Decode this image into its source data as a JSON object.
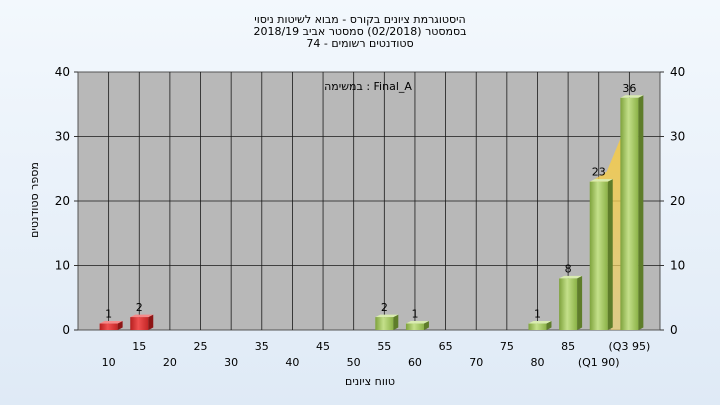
{
  "chart_data": {
    "type": "bar",
    "title_lines": [
      "היסטוגרמת ציונים בקורס - מבוא לשיטות ניסוי",
      "בסמסטר  (02/2018)  סמסטר אביב 2018/19",
      "סטודנטים רשומים - 74"
    ],
    "annotation": "במשימה : Final_A",
    "xlabel": "טווח ציונים",
    "ylabel": "מספר סטודנטים",
    "ylim": [
      0,
      40
    ],
    "yticks": [
      0,
      10,
      20,
      30,
      40
    ],
    "x_tick_labels": [
      {
        "x": 10,
        "text": "10",
        "row": 2
      },
      {
        "x": 15,
        "text": "15",
        "row": 1
      },
      {
        "x": 20,
        "text": "20",
        "row": 2
      },
      {
        "x": 25,
        "text": "25",
        "row": 1
      },
      {
        "x": 30,
        "text": "30",
        "row": 2
      },
      {
        "x": 35,
        "text": "35",
        "row": 1
      },
      {
        "x": 40,
        "text": "40",
        "row": 2
      },
      {
        "x": 45,
        "text": "45",
        "row": 1
      },
      {
        "x": 50,
        "text": "50",
        "row": 2
      },
      {
        "x": 55,
        "text": "55",
        "row": 1
      },
      {
        "x": 60,
        "text": "60",
        "row": 2
      },
      {
        "x": 65,
        "text": "65",
        "row": 1
      },
      {
        "x": 70,
        "text": "70",
        "row": 2
      },
      {
        "x": 75,
        "text": "75",
        "row": 1
      },
      {
        "x": 80,
        "text": "80",
        "row": 2
      },
      {
        "x": 85,
        "text": "85",
        "row": 1
      },
      {
        "x": 90,
        "text": "(Q1 90)",
        "row": 2
      },
      {
        "x": 95,
        "text": "(Q3 95)",
        "row": 1
      }
    ],
    "bars": [
      {
        "x": 10,
        "value": 1,
        "group": "fail"
      },
      {
        "x": 15,
        "value": 2,
        "group": "fail"
      },
      {
        "x": 55,
        "value": 2,
        "group": "pass"
      },
      {
        "x": 60,
        "value": 1,
        "group": "pass"
      },
      {
        "x": 80,
        "value": 1,
        "group": "pass"
      },
      {
        "x": 85,
        "value": 8,
        "group": "pass"
      },
      {
        "x": 90,
        "value": 23,
        "group": "pass"
      },
      {
        "x": 95,
        "value": 36,
        "group": "pass"
      }
    ],
    "grid": true,
    "colors": {
      "fail": "#e03a3a",
      "pass": "#9cc25a",
      "plot_bg": "#b8b8b8",
      "quartile_band": "#f5c93a"
    }
  }
}
